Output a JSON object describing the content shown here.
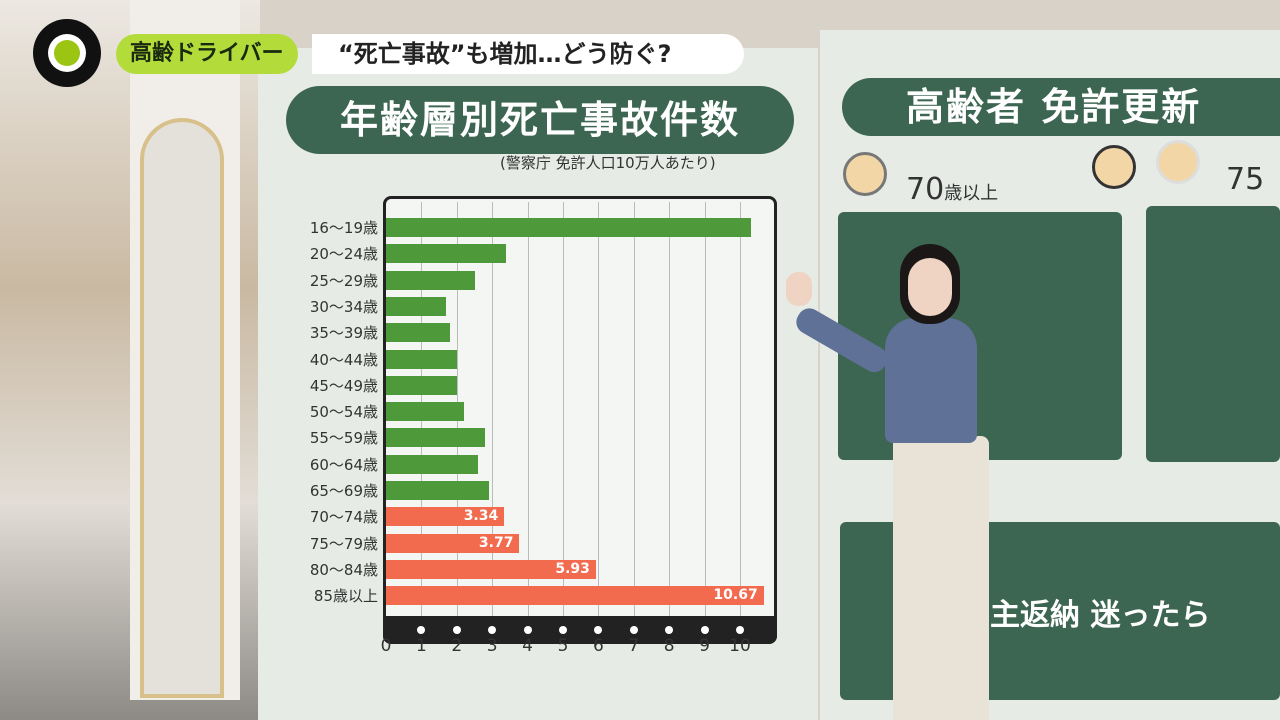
{
  "broadcast": {
    "topic_tag": "高齢ドライバー",
    "headline": "“死亡事故”も増加…どう防ぐ?"
  },
  "chart_data": {
    "type": "bar",
    "orientation": "horizontal",
    "title": "年齢層別死亡事故件数",
    "subtitle": "(警察庁 免許人口10万人あたり)",
    "categories": [
      "16〜19歳",
      "20〜24歳",
      "25〜29歳",
      "30〜34歳",
      "35〜39歳",
      "40〜44歳",
      "45〜49歳",
      "50〜54歳",
      "55〜59歳",
      "60〜64歳",
      "65〜69歳",
      "70〜74歳",
      "75〜79歳",
      "80〜84歳",
      "85歳以上"
    ],
    "values": [
      10.3,
      3.4,
      2.5,
      1.7,
      1.8,
      2.0,
      2.0,
      2.2,
      2.8,
      2.6,
      2.9,
      3.34,
      3.77,
      5.93,
      10.67
    ],
    "data_labels": [
      "",
      "",
      "",
      "",
      "",
      "",
      "",
      "",
      "",
      "",
      "",
      "3.34",
      "3.77",
      "5.93",
      "10.67"
    ],
    "highlight_from_index": 11,
    "colors": {
      "normal": "#4e9a3a",
      "highlight": "#f26b4f"
    },
    "xlim": [
      0,
      10.9
    ],
    "xticks": [
      "0",
      "1",
      "2",
      "3",
      "4",
      "5",
      "6",
      "7",
      "8",
      "9",
      "10"
    ],
    "grid": true
  },
  "right_board": {
    "title": "高齢者 免許更新",
    "age_label_1_num": "70",
    "age_label_1_unit": "歳以上",
    "age_label_2": "75",
    "bottom_text": "主返納 迷ったら"
  }
}
